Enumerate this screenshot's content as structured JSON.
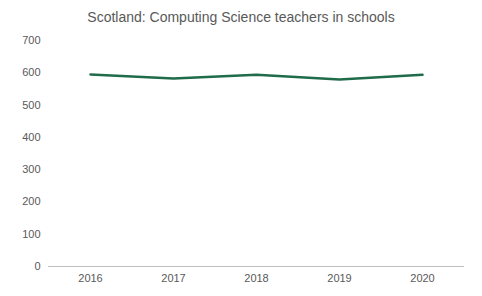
{
  "chart_data": {
    "type": "line",
    "title": "Scotland: Computing Science teachers in schools",
    "categories": [
      "2016",
      "2017",
      "2018",
      "2019",
      "2020"
    ],
    "values": [
      595,
      582,
      594,
      579,
      594
    ],
    "color": "#1f6b4a",
    "ylim": [
      0,
      700
    ],
    "yticks": [
      0,
      100,
      200,
      300,
      400,
      500,
      600,
      700
    ],
    "grid": false
  }
}
